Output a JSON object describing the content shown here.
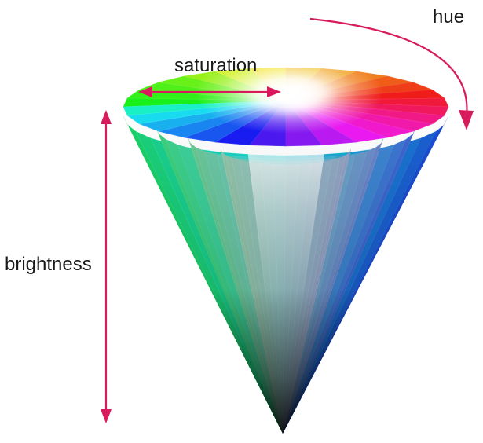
{
  "labels": {
    "hue": "hue",
    "saturation": "saturation",
    "brightness": "brightness"
  },
  "colors": {
    "arrow": "#d81b5c",
    "text": "#1a1a1a",
    "background": "#ffffff",
    "apex": "#1a1a1a"
  },
  "cone": {
    "hue_segments": 28,
    "saturation_rings": 4
  }
}
